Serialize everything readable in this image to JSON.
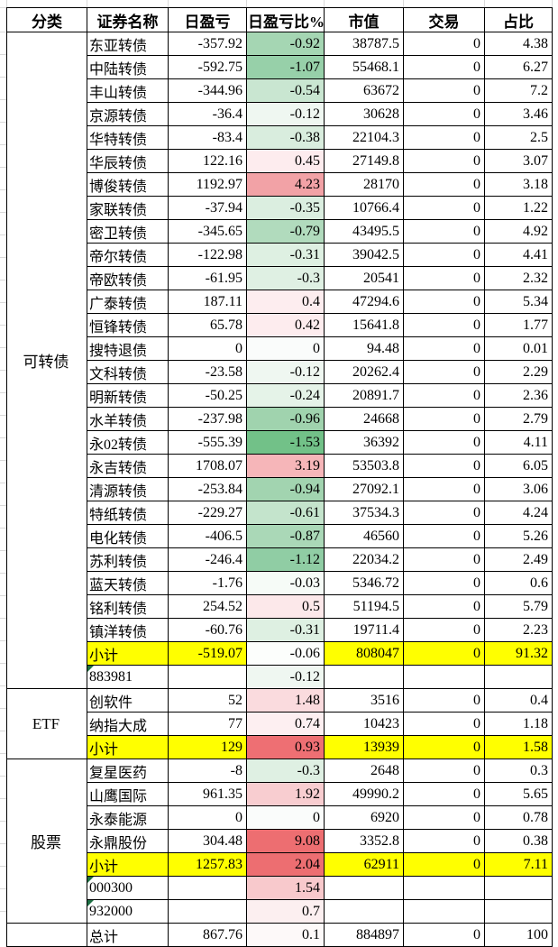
{
  "header": {
    "labels": [
      "分类",
      "证券名称",
      "日盈亏",
      "日盈亏比%",
      "市值",
      "交易",
      "占比"
    ]
  },
  "palette": {
    "subtotal_bg": "#ffff00",
    "flag_triangle": "#1d7044",
    "border": "#000000",
    "gridline": "#d9d9d9",
    "text": "#000000"
  },
  "blocks": [
    {
      "category": "可转债",
      "rows": [
        {
          "name": "东亚转债",
          "pnl": "-357.92",
          "ratio": "-0.92",
          "ratio_bg": "#a5d6b3",
          "mv": "38787.5",
          "trade": "0",
          "pct": "4.38",
          "style": "normal",
          "flag": false
        },
        {
          "name": "中陆转债",
          "pnl": "-592.75",
          "ratio": "-1.07",
          "ratio_bg": "#97d0a9",
          "mv": "55468.1",
          "trade": "0",
          "pct": "6.27",
          "style": "normal",
          "flag": false
        },
        {
          "name": "丰山转债",
          "pnl": "-344.96",
          "ratio": "-0.54",
          "ratio_bg": "#c9e6d1",
          "mv": "63672",
          "trade": "0",
          "pct": "7.2",
          "style": "normal",
          "flag": false
        },
        {
          "name": "京源转债",
          "pnl": "-36.4",
          "ratio": "-0.12",
          "ratio_bg": "#eff7f1",
          "mv": "30628",
          "trade": "0",
          "pct": "3.46",
          "style": "normal",
          "flag": false
        },
        {
          "name": "华特转债",
          "pnl": "-83.4",
          "ratio": "-0.38",
          "ratio_bg": "#d9edde",
          "mv": "22104.3",
          "trade": "0",
          "pct": "2.5",
          "style": "normal",
          "flag": false
        },
        {
          "name": "华辰转债",
          "pnl": "122.16",
          "ratio": "0.45",
          "ratio_bg": "#fdecee",
          "mv": "27149.8",
          "trade": "0",
          "pct": "3.07",
          "style": "normal",
          "flag": false
        },
        {
          "name": "博俊转债",
          "pnl": "1192.97",
          "ratio": "4.23",
          "ratio_bg": "#f2a2a6",
          "mv": "28170",
          "trade": "0",
          "pct": "3.18",
          "style": "normal",
          "flag": false
        },
        {
          "name": "家联转债",
          "pnl": "-37.94",
          "ratio": "-0.35",
          "ratio_bg": "#dbeee0",
          "mv": "10766.4",
          "trade": "0",
          "pct": "1.22",
          "style": "normal",
          "flag": false
        },
        {
          "name": "密卫转债",
          "pnl": "-345.65",
          "ratio": "-0.79",
          "ratio_bg": "#b1dbbd",
          "mv": "43495.5",
          "trade": "0",
          "pct": "4.92",
          "style": "normal",
          "flag": false
        },
        {
          "name": "帝尔转债",
          "pnl": "-122.98",
          "ratio": "-0.31",
          "ratio_bg": "#def0e2",
          "mv": "39042.5",
          "trade": "0",
          "pct": "4.41",
          "style": "normal",
          "flag": false
        },
        {
          "name": "帝欧转债",
          "pnl": "-61.95",
          "ratio": "-0.3",
          "ratio_bg": "#dff0e3",
          "mv": "20541",
          "trade": "0",
          "pct": "2.32",
          "style": "normal",
          "flag": false
        },
        {
          "name": "广泰转债",
          "pnl": "187.11",
          "ratio": "0.4",
          "ratio_bg": "#fdedef",
          "mv": "47294.6",
          "trade": "0",
          "pct": "5.34",
          "style": "normal",
          "flag": false
        },
        {
          "name": "恒锋转债",
          "pnl": "65.78",
          "ratio": "0.42",
          "ratio_bg": "#fdecee",
          "mv": "15641.8",
          "trade": "0",
          "pct": "1.77",
          "style": "normal",
          "flag": false
        },
        {
          "name": "搜特退债",
          "pnl": "0",
          "ratio": "0",
          "ratio_bg": "#fafcfb",
          "mv": "94.48",
          "trade": "0",
          "pct": "0.01",
          "style": "normal",
          "flag": false
        },
        {
          "name": "文科转债",
          "pnl": "-23.58",
          "ratio": "-0.12",
          "ratio_bg": "#eff7f1",
          "mv": "20262.4",
          "trade": "0",
          "pct": "2.29",
          "style": "normal",
          "flag": false
        },
        {
          "name": "明新转债",
          "pnl": "-50.25",
          "ratio": "-0.24",
          "ratio_bg": "#e5f3e8",
          "mv": "20891.7",
          "trade": "0",
          "pct": "2.36",
          "style": "normal",
          "flag": false
        },
        {
          "name": "水羊转债",
          "pnl": "-237.98",
          "ratio": "-0.96",
          "ratio_bg": "#a0d3ae",
          "mv": "24668",
          "trade": "0",
          "pct": "2.79",
          "style": "normal",
          "flag": false
        },
        {
          "name": "永02转债",
          "pnl": "-555.39",
          "ratio": "-1.53",
          "ratio_bg": "#72c188",
          "mv": "36392",
          "trade": "0",
          "pct": "4.11",
          "style": "normal",
          "flag": false
        },
        {
          "name": "永吉转债",
          "pnl": "1708.07",
          "ratio": "3.19",
          "ratio_bg": "#f6b6b9",
          "mv": "53503.8",
          "trade": "0",
          "pct": "6.05",
          "style": "normal",
          "flag": false
        },
        {
          "name": "清源转债",
          "pnl": "-253.84",
          "ratio": "-0.94",
          "ratio_bg": "#a2d4b0",
          "mv": "27092.1",
          "trade": "0",
          "pct": "3.06",
          "style": "normal",
          "flag": false
        },
        {
          "name": "特纸转债",
          "pnl": "-229.27",
          "ratio": "-0.61",
          "ratio_bg": "#c4e4cc",
          "mv": "37534.3",
          "trade": "0",
          "pct": "4.24",
          "style": "normal",
          "flag": false
        },
        {
          "name": "电化转债",
          "pnl": "-406.5",
          "ratio": "-0.87",
          "ratio_bg": "#aad8b7",
          "mv": "46560",
          "trade": "0",
          "pct": "5.26",
          "style": "normal",
          "flag": false
        },
        {
          "name": "苏利转债",
          "pnl": "-246.4",
          "ratio": "-1.12",
          "ratio_bg": "#90cda4",
          "mv": "22034.2",
          "trade": "0",
          "pct": "2.49",
          "style": "normal",
          "flag": false
        },
        {
          "name": "蓝天转债",
          "pnl": "-1.76",
          "ratio": "-0.03",
          "ratio_bg": "#f6fbf7",
          "mv": "5346.72",
          "trade": "0",
          "pct": "0.6",
          "style": "normal",
          "flag": false
        },
        {
          "name": "铭利转债",
          "pnl": "254.52",
          "ratio": "0.5",
          "ratio_bg": "#fce8ea",
          "mv": "51194.5",
          "trade": "0",
          "pct": "5.79",
          "style": "normal",
          "flag": false
        },
        {
          "name": "镇洋转债",
          "pnl": "-60.76",
          "ratio": "-0.31",
          "ratio_bg": "#def0e2",
          "mv": "19711.4",
          "trade": "0",
          "pct": "2.23",
          "style": "normal",
          "flag": false
        },
        {
          "name": "小计",
          "pnl": "-519.07",
          "ratio": "-0.06",
          "ratio_bg": "#fcfefc",
          "mv": "808047",
          "trade": "0",
          "pct": "91.32",
          "style": "subtotal",
          "flag": false
        },
        {
          "name": "883981",
          "pnl": "",
          "ratio": "-0.12",
          "ratio_bg": "#eff7f1",
          "mv": "",
          "trade": "",
          "pct": "",
          "style": "code",
          "flag": true
        }
      ]
    },
    {
      "category": "ETF",
      "rows": [
        {
          "name": "创软件",
          "pnl": "52",
          "ratio": "1.48",
          "ratio_bg": "#fadbde",
          "mv": "3516",
          "trade": "0",
          "pct": "0.4",
          "style": "normal",
          "flag": false
        },
        {
          "name": "纳指大成",
          "pnl": "77",
          "ratio": "0.74",
          "ratio_bg": "#fdeff1",
          "mv": "10423",
          "trade": "0",
          "pct": "1.18",
          "style": "normal",
          "flag": false
        },
        {
          "name": "小计",
          "pnl": "129",
          "ratio": "0.93",
          "ratio_bg": "#ee6f73",
          "mv": "13939",
          "trade": "0",
          "pct": "1.58",
          "style": "subtotal",
          "flag": false
        }
      ]
    },
    {
      "category": "股票",
      "rows": [
        {
          "name": "复星医药",
          "pnl": "-8",
          "ratio": "-0.3",
          "ratio_bg": "#dff0e3",
          "mv": "2648",
          "trade": "0",
          "pct": "0.3",
          "style": "normal",
          "flag": false
        },
        {
          "name": "山鹰国际",
          "pnl": "961.35",
          "ratio": "1.92",
          "ratio_bg": "#f8cdd0",
          "mv": "49990.2",
          "trade": "0",
          "pct": "5.65",
          "style": "normal",
          "flag": false
        },
        {
          "name": "永泰能源",
          "pnl": "0",
          "ratio": "0",
          "ratio_bg": "#fafcfb",
          "mv": "6920",
          "trade": "0",
          "pct": "0.78",
          "style": "normal",
          "flag": false
        },
        {
          "name": "永鼎股份",
          "pnl": "304.48",
          "ratio": "9.08",
          "ratio_bg": "#ed6e71",
          "mv": "3352.8",
          "trade": "0",
          "pct": "0.38",
          "style": "normal",
          "flag": false
        },
        {
          "name": "小计",
          "pnl": "1257.83",
          "ratio": "2.04",
          "ratio_bg": "#ed6e71",
          "mv": "62911",
          "trade": "0",
          "pct": "7.11",
          "style": "subtotal",
          "flag": false
        },
        {
          "name": "000300",
          "pnl": "",
          "ratio": "1.54",
          "ratio_bg": "#f8c9cc",
          "mv": "",
          "trade": "",
          "pct": "",
          "style": "code",
          "flag": true
        },
        {
          "name": "932000",
          "pnl": "",
          "ratio": "0.7",
          "ratio_bg": "#fceff0",
          "mv": "",
          "trade": "",
          "pct": "",
          "style": "code",
          "flag": true
        }
      ]
    },
    {
      "category": "",
      "rows": [
        {
          "name": "总计",
          "pnl": "867.76",
          "ratio": "0.1",
          "ratio_bg": "#fdf9f9",
          "mv": "884897",
          "trade": "0",
          "pct": "100",
          "style": "total",
          "flag": false
        }
      ]
    }
  ]
}
